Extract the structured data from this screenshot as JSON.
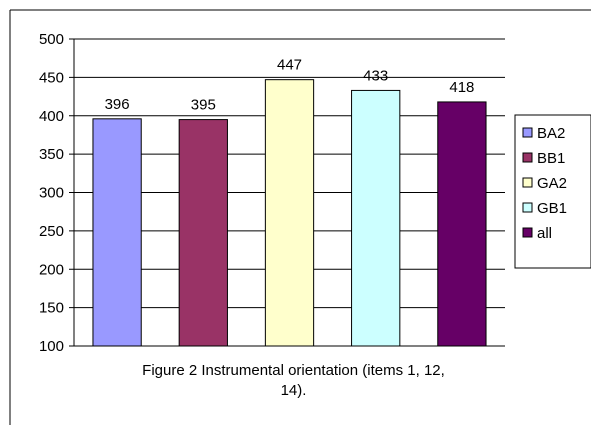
{
  "chart_data": {
    "type": "bar",
    "categories": [
      "BA2",
      "BB1",
      "GA2",
      "GB1",
      "all"
    ],
    "values": [
      396,
      395,
      447,
      433,
      418
    ],
    "data_labels": [
      "396",
      "395",
      "447",
      "433",
      "418"
    ],
    "colors": [
      "#9999ff",
      "#993366",
      "#ffffcc",
      "#ccffff",
      "#660066"
    ],
    "ylim": [
      100,
      500
    ],
    "yticks": [
      100,
      150,
      200,
      250,
      300,
      350,
      400,
      450,
      500
    ],
    "ytick_labels": [
      "100",
      "150",
      "200",
      "250",
      "300",
      "350",
      "400",
      "450",
      "500"
    ],
    "grid": true,
    "legend_position": "right",
    "legend": [
      "BA2",
      "BB1",
      "GA2",
      "GB1",
      "all"
    ],
    "caption_lines": [
      "Figure 2 Instrumental orientation (items 1, 12,",
      "14)."
    ],
    "xlabel": "",
    "ylabel": ""
  }
}
